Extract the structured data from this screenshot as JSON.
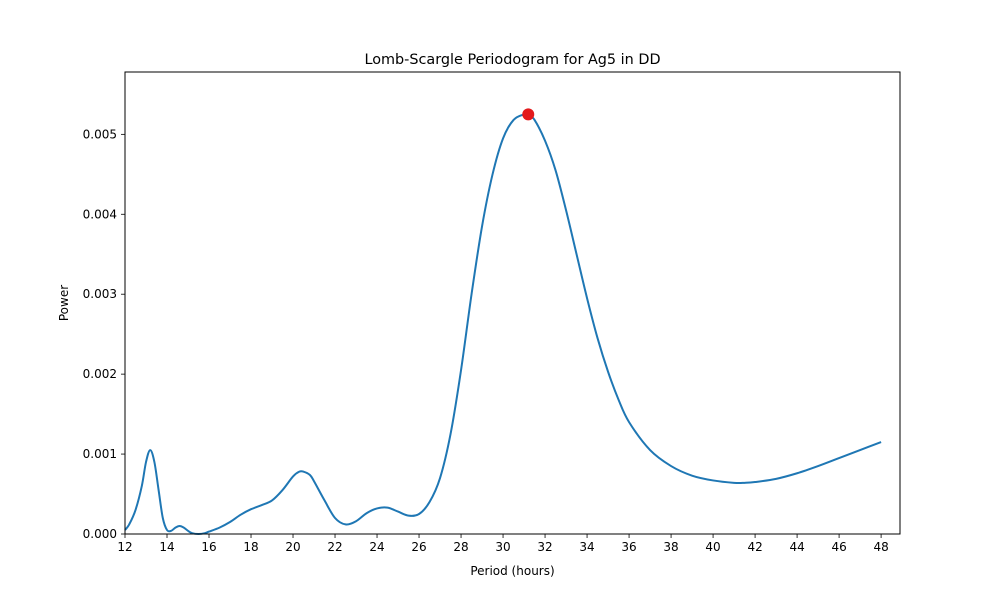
{
  "chart_data": {
    "type": "line",
    "title": "Lomb-Scargle Periodogram for Ag5 in DD",
    "xlabel": "Period (hours)",
    "ylabel": "Power",
    "xlim": [
      12,
      48.9
    ],
    "ylim": [
      0,
      0.00578
    ],
    "x_ticks": [
      12,
      14,
      16,
      18,
      20,
      22,
      24,
      26,
      28,
      30,
      32,
      34,
      36,
      38,
      40,
      42,
      44,
      46,
      48
    ],
    "x_tick_labels": [
      "12",
      "14",
      "16",
      "18",
      "20",
      "22",
      "24",
      "26",
      "28",
      "30",
      "32",
      "34",
      "36",
      "38",
      "40",
      "42",
      "44",
      "46",
      "48"
    ],
    "y_ticks": [
      0,
      0.001,
      0.002,
      0.003,
      0.004,
      0.005
    ],
    "y_tick_labels": [
      "0.000",
      "0.001",
      "0.002",
      "0.003",
      "0.004",
      "0.005"
    ],
    "grid": false,
    "series": [
      {
        "color": "#1f77b4",
        "x": [
          12.0,
          12.2,
          12.5,
          12.8,
          13.0,
          13.2,
          13.4,
          13.6,
          13.8,
          14.0,
          14.2,
          14.4,
          14.6,
          14.8,
          15.0,
          15.2,
          15.5,
          15.8,
          16.0,
          16.5,
          17.0,
          17.5,
          18.0,
          18.5,
          19.0,
          19.5,
          20.0,
          20.3,
          20.5,
          20.8,
          21.0,
          21.5,
          22.0,
          22.5,
          23.0,
          23.5,
          24.0,
          24.5,
          25.0,
          25.5,
          26.0,
          26.5,
          27.0,
          27.5,
          28.0,
          28.5,
          29.0,
          29.5,
          30.0,
          30.5,
          31.0,
          31.2,
          31.5,
          32.0,
          32.5,
          33.0,
          33.5,
          34.0,
          34.5,
          35.0,
          35.5,
          36.0,
          37.0,
          38.0,
          39.0,
          40.0,
          41.0,
          41.5,
          42.0,
          43.0,
          44.0,
          45.0,
          46.0,
          47.0,
          48.0
        ],
        "y": [
          5e-05,
          0.00012,
          0.0003,
          0.0006,
          0.0009,
          0.00105,
          0.0009,
          0.00055,
          0.0002,
          5e-05,
          4e-05,
          8e-05,
          0.0001,
          8e-05,
          4e-05,
          1e-05,
          0.0,
          1e-05,
          3e-05,
          8e-05,
          0.00015,
          0.00024,
          0.00031,
          0.00036,
          0.00042,
          0.00055,
          0.00072,
          0.00078,
          0.00078,
          0.00074,
          0.00066,
          0.00042,
          0.0002,
          0.00012,
          0.00016,
          0.00026,
          0.00032,
          0.00033,
          0.00028,
          0.00023,
          0.00025,
          0.0004,
          0.0007,
          0.00125,
          0.00205,
          0.003,
          0.00385,
          0.0045,
          0.00495,
          0.00518,
          0.00525,
          0.00525,
          0.00518,
          0.00492,
          0.00455,
          0.00405,
          0.0035,
          0.00295,
          0.00245,
          0.00203,
          0.00168,
          0.0014,
          0.00105,
          0.00085,
          0.00073,
          0.00067,
          0.00064,
          0.00064,
          0.00065,
          0.00069,
          0.00076,
          0.00085,
          0.00095,
          0.00105,
          0.00115
        ]
      }
    ],
    "highlight_point": {
      "x": 31.2,
      "y": 0.00525,
      "color": "#e31a1c"
    }
  }
}
